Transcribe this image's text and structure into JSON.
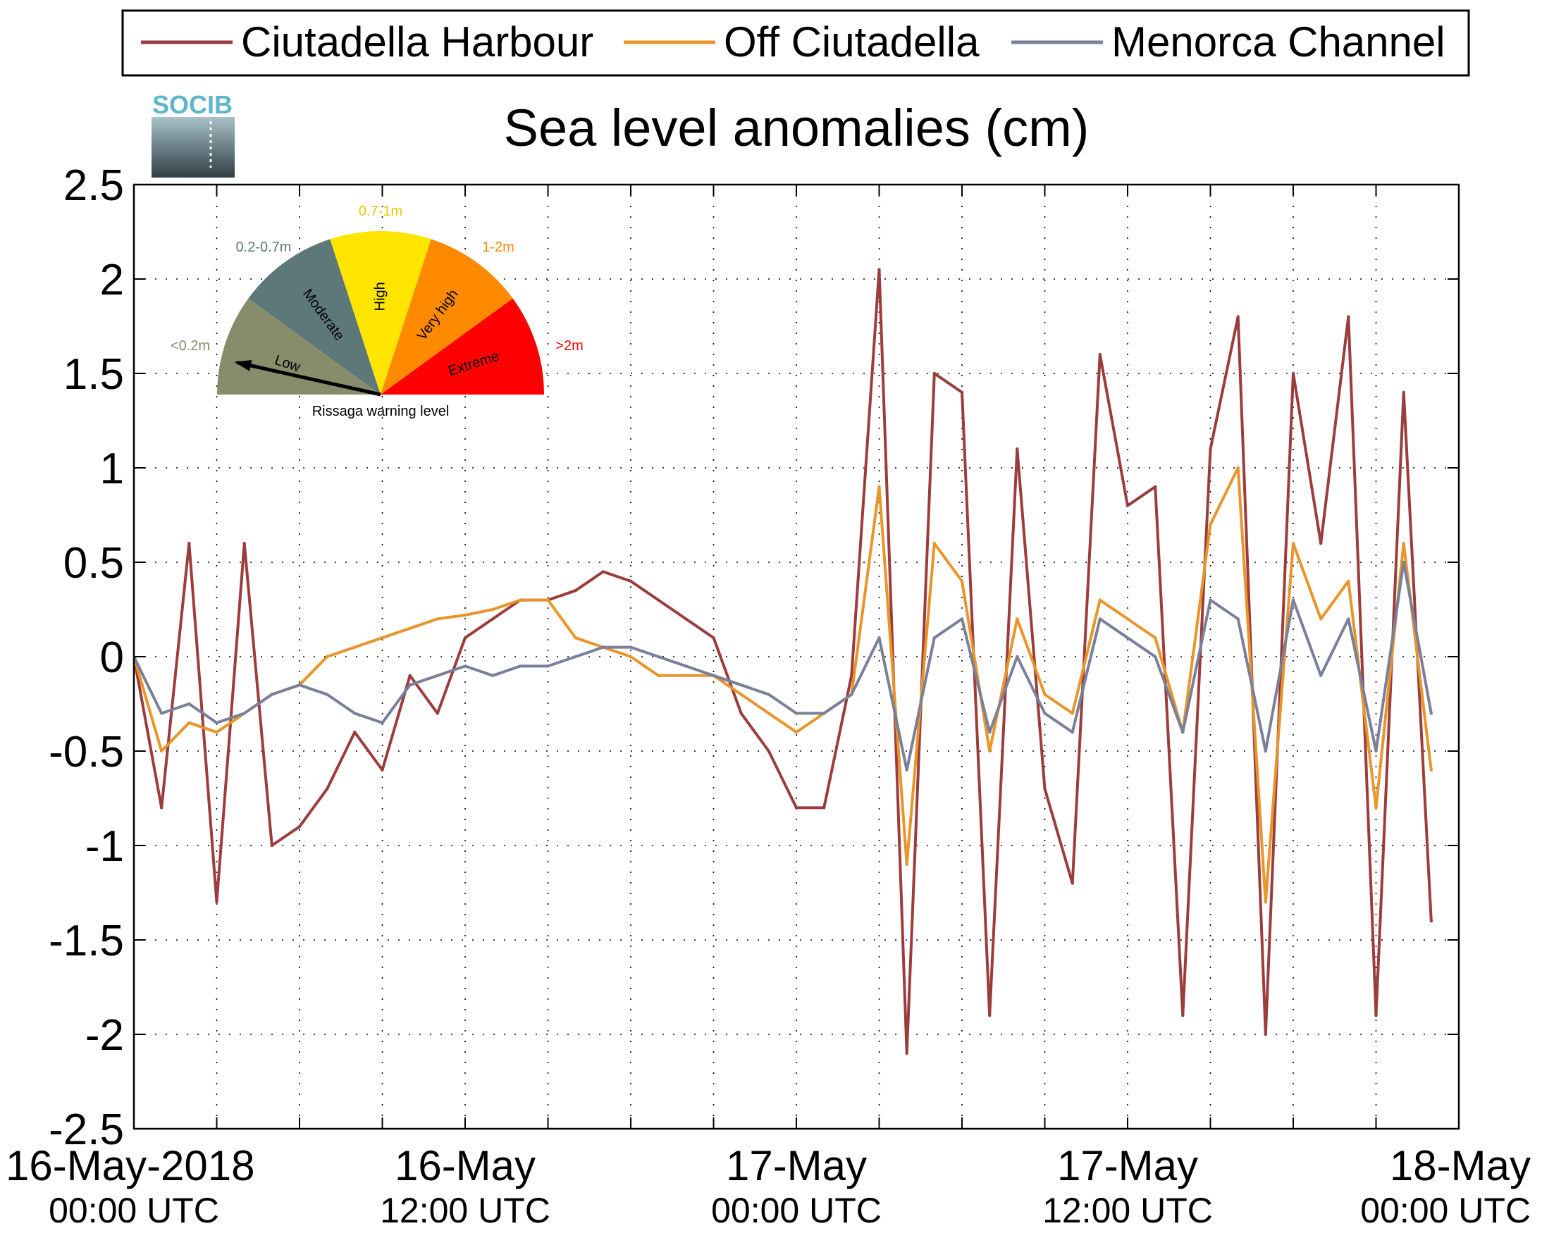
{
  "page": {
    "logo_text": "SOCIB"
  },
  "gauge": {
    "caption": "Rissaga warning level",
    "pointer_level": "Low",
    "sectors": [
      {
        "name": "Low",
        "range": "<0.2m",
        "color": "#878c6a",
        "range_color": "#878c6a"
      },
      {
        "name": "Moderate",
        "range": "0.2-0.7m",
        "color": "#5d7878",
        "range_color": "#5d7878"
      },
      {
        "name": "High",
        "range": "0.7-1m",
        "color": "#ffe500",
        "range_color": "#e6c800"
      },
      {
        "name": "Very high",
        "range": "1-2m",
        "color": "#ff8a00",
        "range_color": "#ff8a00"
      },
      {
        "name": "Extreme",
        "range": ">2m",
        "color": "#ff0000",
        "range_color": "#ff0000"
      }
    ]
  },
  "chart_data": {
    "type": "line",
    "title": "Sea level anomalies (cm)",
    "xlabel": "",
    "ylabel": "",
    "ylim": [
      -2.5,
      2.5
    ],
    "yticks": [
      -2.5,
      -2,
      -1.5,
      -1,
      -0.5,
      0,
      0.5,
      1,
      1.5,
      2,
      2.5
    ],
    "ytick_labels": [
      "-2.5",
      "-2",
      "-1.5",
      "-1",
      "-0.5",
      "0",
      "0.5",
      "1",
      "1.5",
      "2",
      "2.5"
    ],
    "xlim_hours": [
      0,
      48
    ],
    "x_tick_hours": [
      0,
      3,
      6,
      9,
      12,
      15,
      18,
      21,
      24,
      27,
      30,
      33,
      36,
      39,
      42,
      45,
      48
    ],
    "x_labels": [
      {
        "hour": 0,
        "line1": "16-May-2018",
        "line2": "00:00 UTC"
      },
      {
        "hour": 12,
        "line1": "16-May",
        "line2": "12:00 UTC"
      },
      {
        "hour": 24,
        "line1": "17-May",
        "line2": "00:00 UTC"
      },
      {
        "hour": 36,
        "line1": "17-May",
        "line2": "12:00 UTC"
      },
      {
        "hour": 48,
        "line1": "18-May",
        "line2": "00:00 UTC"
      }
    ],
    "grid": true,
    "legend_position": "top",
    "series": [
      {
        "name": "Ciutadella Harbour",
        "color": "#9b3d3d",
        "x_step_hours": 1,
        "values": [
          0.0,
          -0.8,
          0.6,
          -1.3,
          0.6,
          -1.0,
          -0.9,
          -0.7,
          -0.4,
          -0.6,
          -0.1,
          -0.3,
          0.1,
          0.2,
          0.3,
          0.3,
          0.35,
          0.45,
          0.4,
          0.3,
          0.2,
          0.1,
          -0.3,
          -0.5,
          -0.8,
          -0.8,
          -0.1,
          2.05,
          -2.1,
          1.5,
          1.4,
          -1.9,
          1.1,
          -0.7,
          -1.2,
          1.6,
          0.8,
          0.9,
          -1.9,
          1.1,
          1.8,
          -2.0,
          1.5,
          0.6,
          1.8,
          -1.9,
          1.4,
          -1.4
        ]
      },
      {
        "name": "Off Ciutadella",
        "color": "#e8952a",
        "x_step_hours": 1,
        "values": [
          0.0,
          -0.5,
          -0.35,
          -0.4,
          -0.3,
          -0.2,
          -0.15,
          0.0,
          0.05,
          0.1,
          0.15,
          0.2,
          0.22,
          0.25,
          0.3,
          0.3,
          0.1,
          0.05,
          0.0,
          -0.1,
          -0.1,
          -0.1,
          -0.2,
          -0.3,
          -0.4,
          -0.3,
          -0.2,
          0.9,
          -1.1,
          0.6,
          0.4,
          -0.5,
          0.2,
          -0.2,
          -0.3,
          0.3,
          0.2,
          0.1,
          -0.4,
          0.7,
          1.0,
          -1.3,
          0.6,
          0.2,
          0.4,
          -0.8,
          0.6,
          -0.6
        ]
      },
      {
        "name": "Menorca Channel",
        "color": "#7a7f9a",
        "x_step_hours": 1,
        "values": [
          0.0,
          -0.3,
          -0.25,
          -0.35,
          -0.3,
          -0.2,
          -0.15,
          -0.2,
          -0.3,
          -0.35,
          -0.15,
          -0.1,
          -0.05,
          -0.1,
          -0.05,
          -0.05,
          0.0,
          0.05,
          0.05,
          0.0,
          -0.05,
          -0.1,
          -0.15,
          -0.2,
          -0.3,
          -0.3,
          -0.2,
          0.1,
          -0.6,
          0.1,
          0.2,
          -0.4,
          0.0,
          -0.3,
          -0.4,
          0.2,
          0.1,
          0.0,
          -0.4,
          0.3,
          0.2,
          -0.5,
          0.3,
          -0.1,
          0.2,
          -0.5,
          0.5,
          -0.3
        ]
      }
    ]
  }
}
